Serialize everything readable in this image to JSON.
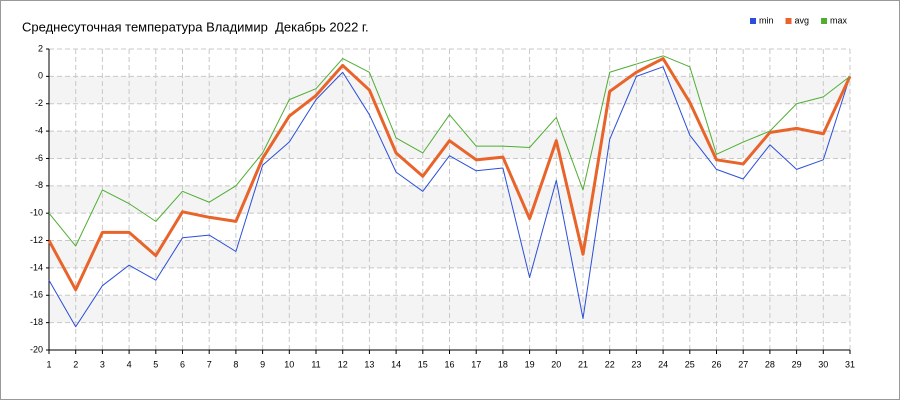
{
  "chart_data": {
    "type": "line",
    "title": "Среднесуточная температура Владимир  Декабрь 2022 г.",
    "x": [
      1,
      2,
      3,
      4,
      5,
      6,
      7,
      8,
      9,
      10,
      11,
      12,
      13,
      14,
      15,
      16,
      17,
      18,
      19,
      20,
      21,
      22,
      23,
      24,
      25,
      26,
      27,
      28,
      29,
      30,
      31
    ],
    "xlim": [
      1,
      31
    ],
    "xticks": [
      1,
      2,
      3,
      4,
      5,
      6,
      7,
      8,
      9,
      10,
      11,
      12,
      13,
      14,
      15,
      16,
      17,
      18,
      19,
      20,
      21,
      22,
      23,
      24,
      25,
      26,
      27,
      28,
      29,
      30,
      31
    ],
    "ylim": [
      -20,
      2
    ],
    "yticks": [
      2,
      0,
      -2,
      -4,
      -6,
      -8,
      -10,
      -12,
      -14,
      -16,
      -18,
      -20
    ],
    "grid": true,
    "legend": "top-right",
    "series": [
      {
        "name": "min",
        "color": "#2b4fd8",
        "values": [
          -14.9,
          -18.3,
          -15.3,
          -13.8,
          -14.9,
          -11.8,
          -11.6,
          -12.8,
          -6.5,
          -4.8,
          -1.7,
          0.3,
          -2.8,
          -7,
          -8.4,
          -5.8,
          -6.9,
          -6.7,
          -14.7,
          -7.6,
          -17.7,
          -4.6,
          0,
          0.7,
          -4.3,
          -6.8,
          -7.5,
          -5,
          -6.8,
          -6.1,
          0
        ]
      },
      {
        "name": "avg",
        "color": "#e8642a",
        "values": [
          -12,
          -15.6,
          -11.4,
          -11.4,
          -13.1,
          -9.9,
          -10.3,
          -10.6,
          -6,
          -2.9,
          -1.4,
          0.8,
          -1,
          -5.6,
          -7.3,
          -4.7,
          -6.1,
          -5.9,
          -10.4,
          -4.7,
          -13,
          -1.1,
          0.3,
          1.3,
          -1.9,
          -6.1,
          -6.4,
          -4.1,
          -3.8,
          -4.2,
          0
        ]
      },
      {
        "name": "max",
        "color": "#4fae32",
        "values": [
          -10,
          -12.4,
          -8.3,
          -9.3,
          -10.6,
          -8.4,
          -9.2,
          -8,
          -5.6,
          -1.7,
          -0.9,
          1.3,
          0.3,
          -4.5,
          -5.6,
          -2.8,
          -5.1,
          -5.1,
          -5.2,
          -3,
          -8.3,
          0.3,
          0.9,
          1.5,
          0.7,
          -5.7,
          -4.8,
          -4,
          -2,
          -1.5,
          0
        ]
      }
    ]
  }
}
